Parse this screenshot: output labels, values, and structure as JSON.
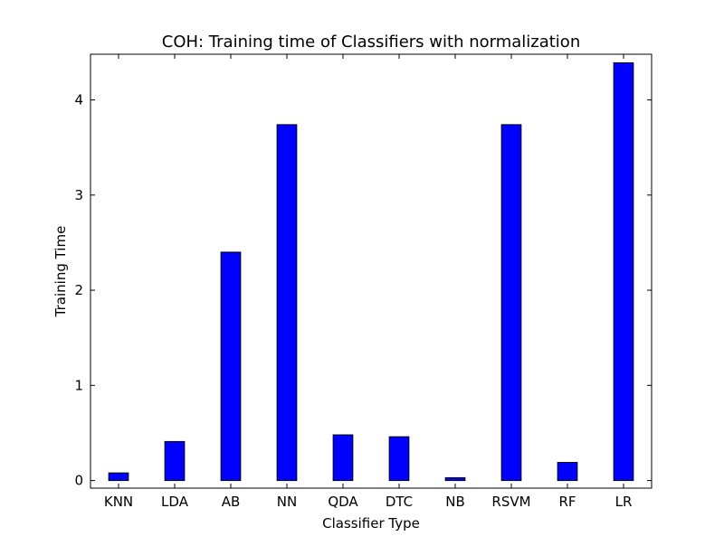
{
  "colors": {
    "bar_fill": "#0000ff",
    "bar_edge": "#000000",
    "background": "#ffffff",
    "axes": "#000000"
  },
  "chart_data": {
    "type": "bar",
    "title": "COH: Training time of Classifiers with normalization",
    "xlabel": "Classifier Type",
    "ylabel": "Training Time",
    "categories": [
      "KNN",
      "LDA",
      "AB",
      "NN",
      "QDA",
      "DTC",
      "NB",
      "RSVM",
      "RF",
      "LR"
    ],
    "values": [
      0.08,
      0.41,
      2.4,
      3.74,
      0.48,
      0.46,
      0.03,
      3.74,
      0.19,
      4.39
    ],
    "ylim": [
      -0.08,
      4.48
    ],
    "yticks": [
      0,
      1,
      2,
      3,
      4
    ],
    "grid": false,
    "legend": "none"
  }
}
